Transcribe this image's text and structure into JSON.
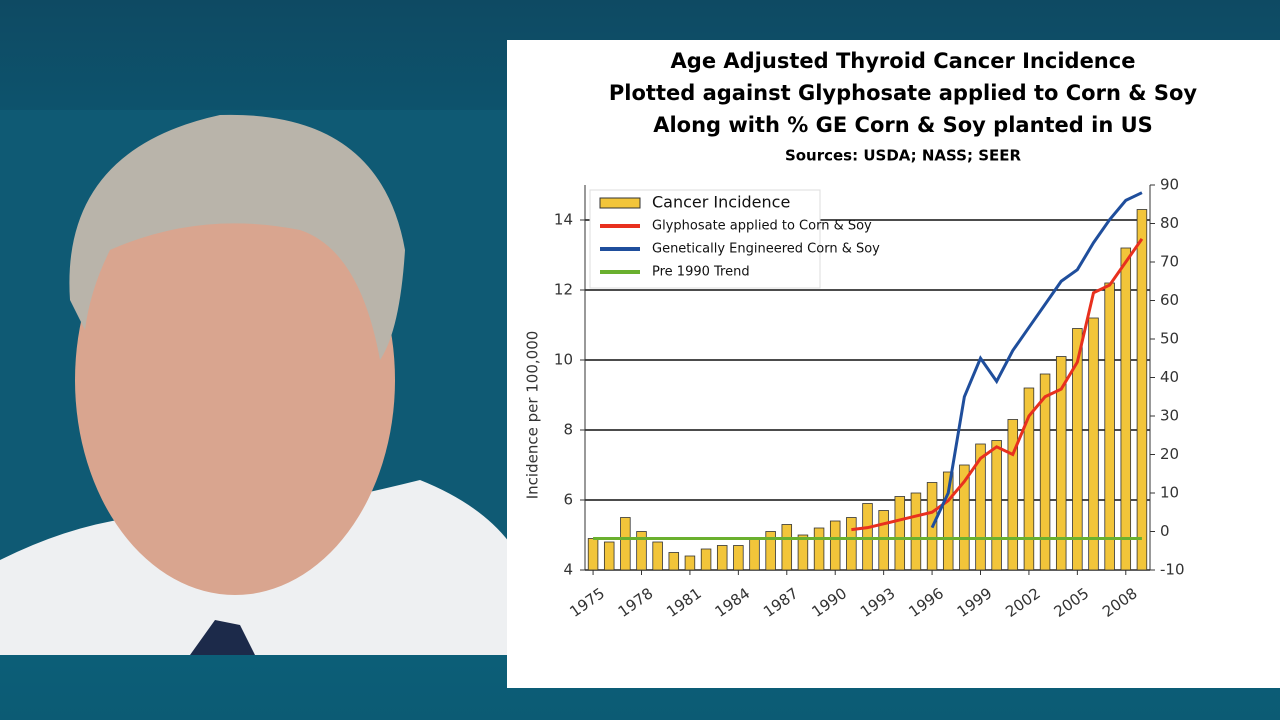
{
  "chart_data": {
    "type": "bar",
    "title": [
      "Age Adjusted Thyroid Cancer Incidence",
      "Plotted against Glyphosate applied to Corn & Soy",
      "Along with % GE Corn & Soy planted in US"
    ],
    "subtitle": "Sources: USDA; NASS; SEER",
    "ylabel": "Incidence per 100,000",
    "x": [
      1975,
      1976,
      1977,
      1978,
      1979,
      1980,
      1981,
      1982,
      1983,
      1984,
      1985,
      1986,
      1987,
      1988,
      1989,
      1990,
      1991,
      1992,
      1993,
      1994,
      1995,
      1996,
      1997,
      1998,
      1999,
      2000,
      2001,
      2002,
      2003,
      2004,
      2005,
      2006,
      2007,
      2008,
      2009
    ],
    "xlim": [
      1974.5,
      2009.5
    ],
    "xticks": [
      1975,
      1978,
      1981,
      1984,
      1987,
      1990,
      1993,
      1996,
      1999,
      2002,
      2005,
      2008
    ],
    "ylim": [
      4,
      15
    ],
    "yticks": [
      4,
      6,
      8,
      10,
      12,
      14
    ],
    "y2lim": [
      -10,
      90
    ],
    "y2ticks": [
      -10,
      0,
      10,
      20,
      30,
      40,
      50,
      60,
      70,
      80,
      90
    ],
    "grid": true,
    "legend": "upper left",
    "series": [
      {
        "name": "Cancer Incidence",
        "type": "bar",
        "color": "#f2c53a",
        "values": [
          4.9,
          4.8,
          5.5,
          5.1,
          4.8,
          4.5,
          4.4,
          4.6,
          4.7,
          4.7,
          4.9,
          5.1,
          5.3,
          5.0,
          5.2,
          5.4,
          5.5,
          5.9,
          5.7,
          6.1,
          6.2,
          6.5,
          6.8,
          7.0,
          7.6,
          7.7,
          8.3,
          9.2,
          9.6,
          10.1,
          10.9,
          11.2,
          12.2,
          13.2,
          14.3
        ]
      },
      {
        "name": "Glyphosate applied to Corn & Soy",
        "type": "line",
        "axis": "y2",
        "color": "#e8301e",
        "values": [
          null,
          null,
          null,
          null,
          null,
          null,
          null,
          null,
          null,
          null,
          null,
          null,
          null,
          null,
          null,
          null,
          0.5,
          1,
          2,
          3,
          4,
          5,
          8,
          13,
          19,
          22,
          20,
          30,
          35,
          37,
          44,
          62,
          64,
          70,
          76
        ]
      },
      {
        "name": "Genetically Engineered Corn & Soy",
        "type": "line",
        "axis": "y2",
        "color": "#1f4e9c",
        "values": [
          null,
          null,
          null,
          null,
          null,
          null,
          null,
          null,
          null,
          null,
          null,
          null,
          null,
          null,
          null,
          null,
          null,
          null,
          null,
          null,
          null,
          1,
          10,
          35,
          45,
          39,
          47,
          53,
          59,
          65,
          68,
          75,
          81,
          86,
          88
        ]
      },
      {
        "name": "Pre 1990 Trend",
        "type": "line",
        "color": "#6ab02e",
        "values": [
          4.9,
          4.9,
          4.9,
          4.9,
          4.9,
          4.9,
          4.9,
          4.9,
          4.9,
          4.9,
          4.9,
          4.9,
          4.9,
          4.9,
          4.9,
          4.9,
          4.9,
          4.9,
          4.9,
          4.9,
          4.9,
          4.9,
          4.9,
          4.9,
          4.9,
          4.9,
          4.9,
          4.9,
          4.9,
          4.9,
          4.9,
          4.9,
          4.9,
          4.9,
          4.9
        ]
      }
    ]
  }
}
